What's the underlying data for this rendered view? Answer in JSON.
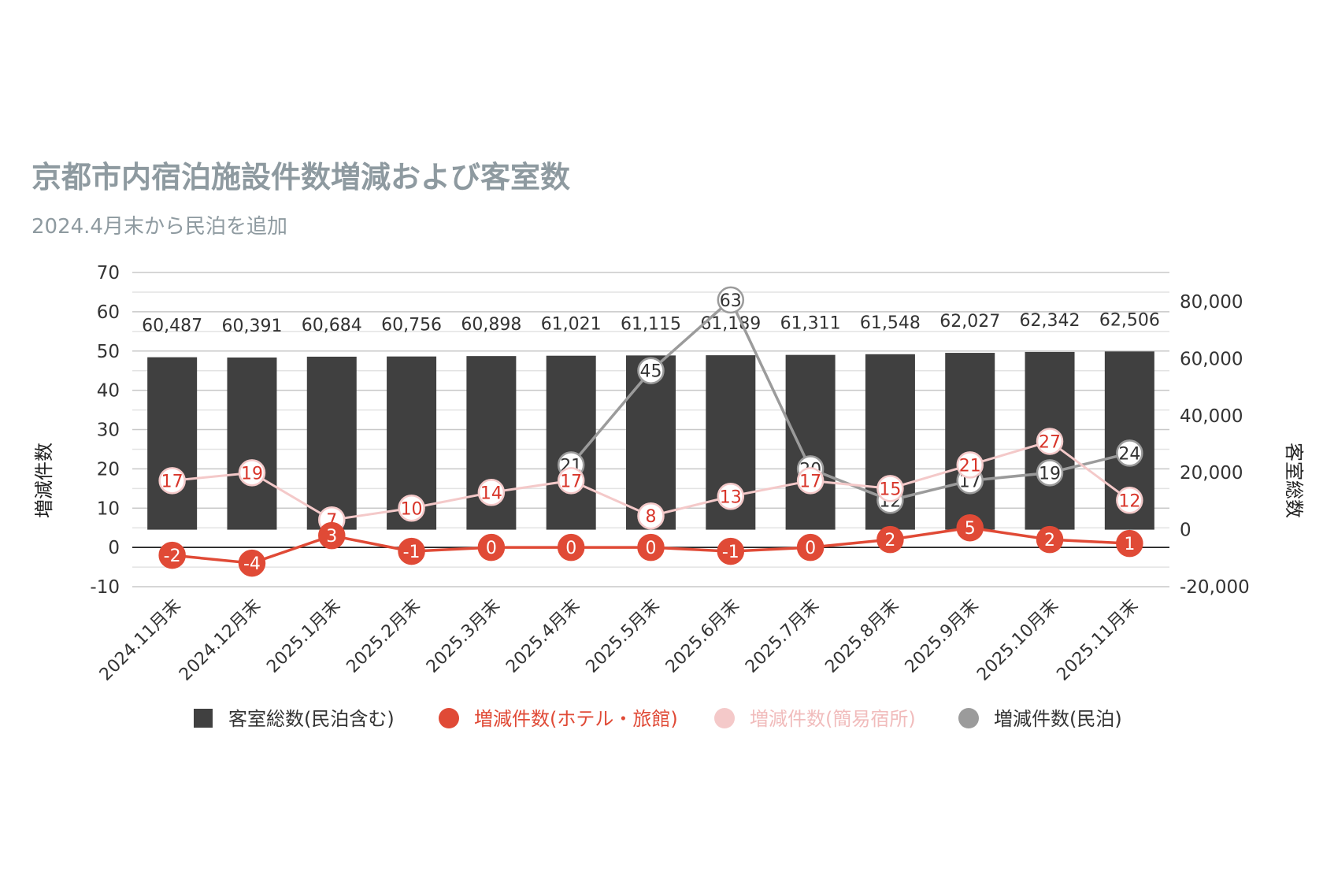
{
  "chart_data": {
    "type": "bar+line",
    "title": "京都市内宿泊施設件数増減および客室数",
    "subtitle": "2024.4月末から民泊を追加",
    "y_left_label": "増減件数",
    "y_right_label": "客室総数",
    "y_left_range": [
      -10,
      70
    ],
    "y_left_ticks": [
      "70",
      "60",
      "50",
      "40",
      "30",
      "20",
      "10",
      "0",
      "-10"
    ],
    "y_right_range": [
      -20000,
      80000
    ],
    "y_right_ticks": [
      "80,000",
      "60,000",
      "40,000",
      "20,000",
      "0",
      "-20,000"
    ],
    "grid": true,
    "legend_position": "bottom",
    "categories": [
      "2024.11月末",
      "2024.12月末",
      "2025.1月末",
      "2025.2月末",
      "2025.3月末",
      "2025.4月末",
      "2025.5月末",
      "2025.6月末",
      "2025.7月末",
      "2025.8月末",
      "2025.9月末",
      "2025.10月末",
      "2025.11月末"
    ],
    "series": [
      {
        "name": "客室総数(民泊含む)",
        "type": "bar",
        "axis": "right",
        "color": "#404040",
        "values": [
          60487,
          60391,
          60684,
          60756,
          60898,
          61021,
          61115,
          61189,
          61311,
          61548,
          62027,
          62342,
          62506
        ],
        "labels": [
          "60,487",
          "60,391",
          "60,684",
          "60,756",
          "60,898",
          "61,021",
          "61,115",
          "61,189",
          "61,311",
          "61,548",
          "62,027",
          "62,342",
          "62,506"
        ]
      },
      {
        "name": "増減件数(ホテル・旅館)",
        "type": "line",
        "axis": "left",
        "color": "#e04a36",
        "values": [
          -2,
          -4,
          3,
          -1,
          0,
          0,
          0,
          -1,
          0,
          2,
          5,
          2,
          1
        ]
      },
      {
        "name": "増減件数(簡易宿所)",
        "type": "line",
        "axis": "left",
        "color": "#f4c9c9",
        "values": [
          17,
          19,
          7,
          10,
          14,
          17,
          8,
          13,
          17,
          15,
          21,
          27,
          12
        ]
      },
      {
        "name": "増減件数(民泊)",
        "type": "line",
        "axis": "left",
        "color": "#9b9b9b",
        "values": [
          null,
          null,
          null,
          null,
          null,
          21,
          45,
          63,
          20,
          12,
          17,
          19,
          24
        ]
      }
    ]
  }
}
